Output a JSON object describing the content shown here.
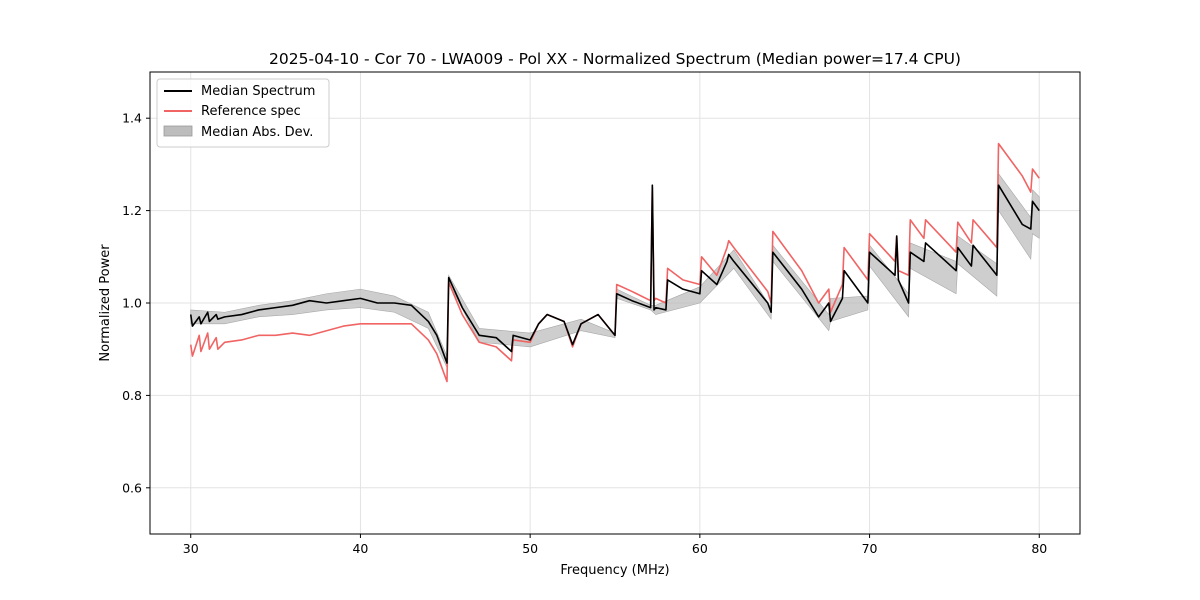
{
  "chart_data": {
    "type": "line",
    "title": "2025-04-10 - Cor 70 - LWA009 - Pol XX - Normalized Spectrum (Median power=17.4 CPU)",
    "xlabel": "Frequency (MHz)",
    "ylabel": "Normalized Power",
    "xlim": [
      27.6,
      82.4
    ],
    "ylim": [
      0.5,
      1.5
    ],
    "xticks": [
      30,
      40,
      50,
      60,
      70,
      80
    ],
    "xtick_labels": [
      "30",
      "40",
      "50",
      "60",
      "70",
      "80"
    ],
    "yticks": [
      0.6,
      0.8,
      1.0,
      1.2,
      1.4
    ],
    "ytick_labels": [
      "0.6",
      "0.8",
      "1.0",
      "1.2",
      "1.4"
    ],
    "grid": true,
    "legend_position": "top-left",
    "legend": [
      {
        "label": "Median Spectrum",
        "kind": "line",
        "color": "#000000"
      },
      {
        "label": "Reference spec",
        "kind": "line",
        "color": "#f06464"
      },
      {
        "label": "Median Abs. Dev.",
        "kind": "patch",
        "color": "#bdbdbd"
      }
    ],
    "series": [
      {
        "name": "Median Spectrum",
        "color": "#000000",
        "x": [
          30.0,
          30.1,
          30.5,
          30.6,
          31.0,
          31.1,
          31.5,
          31.6,
          32.0,
          33.0,
          34.0,
          35.0,
          36.0,
          37.0,
          38.0,
          39.0,
          40.0,
          41.0,
          42.0,
          43.0,
          44.0,
          44.5,
          45.0,
          45.1,
          45.2,
          46.0,
          47.0,
          48.0,
          48.9,
          49.0,
          50.0,
          50.5,
          51.0,
          52.0,
          52.5,
          53.0,
          54.0,
          55.0,
          55.1,
          56.0,
          57.1,
          57.2,
          57.3,
          57.4,
          58.0,
          58.1,
          59.0,
          60.0,
          60.1,
          61.0,
          61.6,
          61.7,
          62.0,
          64.0,
          64.2,
          64.3,
          66.0,
          67.0,
          67.6,
          67.7,
          68.4,
          68.5,
          69.9,
          70.0,
          71.5,
          71.6,
          71.7,
          72.3,
          72.4,
          73.2,
          73.3,
          75.1,
          75.2,
          76.0,
          76.1,
          77.5,
          77.6,
          79.0,
          79.5,
          79.6,
          80.0
        ],
        "y": [
          0.975,
          0.95,
          0.97,
          0.955,
          0.98,
          0.96,
          0.975,
          0.965,
          0.97,
          0.975,
          0.985,
          0.99,
          0.995,
          1.005,
          1.0,
          1.005,
          1.01,
          1.0,
          1.0,
          0.995,
          0.96,
          0.93,
          0.88,
          0.87,
          1.055,
          0.99,
          0.93,
          0.925,
          0.895,
          0.93,
          0.92,
          0.955,
          0.975,
          0.96,
          0.91,
          0.955,
          0.975,
          0.93,
          1.02,
          1.005,
          0.99,
          1.255,
          0.985,
          0.99,
          0.985,
          1.05,
          1.03,
          1.02,
          1.07,
          1.04,
          1.09,
          1.105,
          1.09,
          1.0,
          0.98,
          1.11,
          1.03,
          0.97,
          1.0,
          0.96,
          1.01,
          1.07,
          1.0,
          1.11,
          1.06,
          1.145,
          1.05,
          1.0,
          1.11,
          1.09,
          1.13,
          1.07,
          1.12,
          1.08,
          1.125,
          1.06,
          1.255,
          1.17,
          1.16,
          1.22,
          1.2
        ]
      },
      {
        "name": "Reference spec",
        "color": "#f06464",
        "x": [
          30.0,
          30.1,
          30.5,
          30.6,
          31.0,
          31.1,
          31.5,
          31.6,
          32.0,
          33.0,
          34.0,
          35.0,
          36.0,
          37.0,
          38.0,
          39.0,
          40.0,
          41.0,
          42.0,
          43.0,
          44.0,
          44.5,
          45.0,
          45.1,
          45.2,
          46.0,
          47.0,
          48.0,
          48.9,
          49.0,
          50.0,
          50.5,
          51.0,
          52.0,
          52.5,
          53.0,
          54.0,
          55.0,
          55.1,
          56.0,
          57.1,
          57.2,
          57.3,
          57.4,
          58.0,
          58.1,
          59.0,
          60.0,
          60.1,
          61.0,
          61.6,
          61.7,
          62.0,
          64.0,
          64.2,
          64.3,
          66.0,
          67.0,
          67.6,
          67.7,
          68.4,
          68.5,
          69.9,
          70.0,
          71.5,
          71.6,
          71.7,
          72.3,
          72.4,
          73.2,
          73.3,
          75.1,
          75.2,
          76.0,
          76.1,
          77.5,
          77.6,
          79.0,
          79.5,
          79.6,
          80.0
        ],
        "y": [
          0.91,
          0.885,
          0.93,
          0.895,
          0.935,
          0.9,
          0.925,
          0.9,
          0.915,
          0.92,
          0.93,
          0.93,
          0.935,
          0.93,
          0.94,
          0.95,
          0.955,
          0.955,
          0.955,
          0.955,
          0.92,
          0.89,
          0.84,
          0.83,
          1.045,
          0.975,
          0.915,
          0.905,
          0.875,
          0.92,
          0.915,
          0.955,
          0.975,
          0.96,
          0.905,
          0.955,
          0.975,
          0.93,
          1.04,
          1.025,
          1.005,
          1.25,
          1.005,
          1.01,
          1.0,
          1.075,
          1.05,
          1.04,
          1.1,
          1.06,
          1.12,
          1.135,
          1.12,
          1.025,
          1.0,
          1.155,
          1.07,
          1.0,
          1.03,
          0.98,
          1.04,
          1.12,
          1.05,
          1.15,
          1.09,
          1.145,
          1.07,
          1.06,
          1.18,
          1.14,
          1.18,
          1.11,
          1.175,
          1.13,
          1.18,
          1.12,
          1.345,
          1.275,
          1.24,
          1.29,
          1.27
        ]
      },
      {
        "name": "Median Abs. Dev.",
        "color": "#bdbdbd",
        "kind": "band",
        "x": [
          30.0,
          32.0,
          34.0,
          36.0,
          38.0,
          40.0,
          42.0,
          44.0,
          45.1,
          45.2,
          47.0,
          50.0,
          53.0,
          55.0,
          55.1,
          57.1,
          57.4,
          60.0,
          62.0,
          64.2,
          64.3,
          67.6,
          67.7,
          69.9,
          70.0,
          72.3,
          72.4,
          75.1,
          75.2,
          77.5,
          77.6,
          79.5,
          79.6,
          80.0
        ],
        "upper": [
          0.985,
          0.98,
          0.995,
          1.005,
          1.02,
          1.03,
          1.015,
          0.98,
          0.885,
          1.06,
          0.945,
          0.935,
          0.965,
          0.935,
          1.03,
          0.995,
          0.995,
          1.035,
          1.115,
          0.99,
          1.125,
          0.975,
          1.01,
          1.015,
          1.125,
          1.02,
          1.13,
          1.09,
          1.145,
          1.085,
          1.28,
          1.185,
          1.245,
          1.23
        ],
        "lower": [
          0.955,
          0.955,
          0.97,
          0.975,
          0.985,
          0.99,
          0.98,
          0.945,
          0.86,
          1.045,
          0.915,
          0.905,
          0.94,
          0.925,
          1.01,
          0.985,
          0.975,
          1.0,
          1.075,
          0.965,
          1.09,
          0.94,
          0.96,
          0.985,
          1.08,
          0.97,
          1.075,
          1.02,
          1.085,
          1.015,
          1.2,
          1.095,
          1.15,
          1.14
        ]
      }
    ]
  }
}
